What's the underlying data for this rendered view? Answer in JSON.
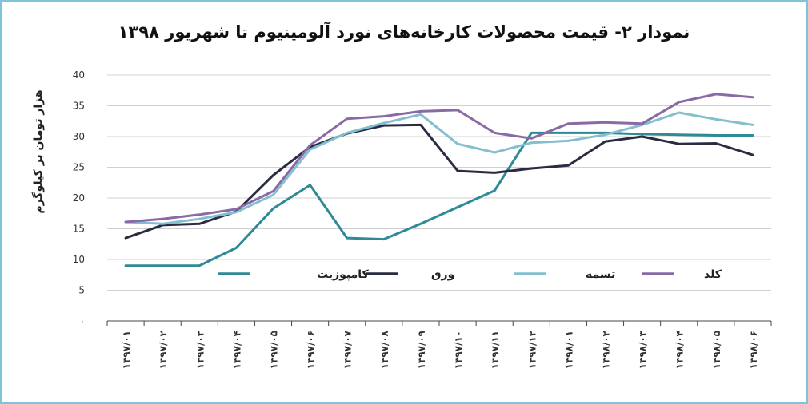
{
  "chart_data": {
    "type": "line",
    "title": "نمودار ۲- قیمت محصولات کارخانه‌های نورد آلومینیوم تا شهریور ۱۳۹۸",
    "xlabel": "",
    "ylabel": "هزار تومان بر کیلوگرم",
    "ylim": [
      0,
      40
    ],
    "yticks": [
      0,
      5,
      10,
      15,
      20,
      25,
      30,
      35,
      40
    ],
    "ytick_labels": [
      "۰",
      "5",
      "10",
      "15",
      "20",
      "25",
      "30",
      "35",
      "40"
    ],
    "grid": true,
    "legend_position": "inside-lower",
    "categories": [
      "۱۳۹۷/۰۱",
      "۱۳۹۷/۰۲",
      "۱۳۹۷/۰۳",
      "۱۳۹۷/۰۴",
      "۱۳۹۷/۰۵",
      "۱۳۹۷/۰۶",
      "۱۳۹۷/۰۷",
      "۱۳۹۷/۰۸",
      "۱۳۹۷/۰۹",
      "۱۳۹۷/۱۰",
      "۱۳۹۷/۱۱",
      "۱۳۹۷/۱۲",
      "۱۳۹۸/۰۱",
      "۱۳۹۸/۰۲",
      "۱۳۹۸/۰۳",
      "۱۳۹۸/۰۴",
      "۱۳۹۸/۰۵",
      "۱۳۹۸/۰۶"
    ],
    "series": [
      {
        "name": "کامپوزیت",
        "color": "#2e8a95",
        "values": [
          9,
          9,
          9,
          11.9,
          18.3,
          22.1,
          13.5,
          13.3,
          15.8,
          18.5,
          21.2,
          30.6,
          30.6,
          30.6,
          30.4,
          30.3,
          30.2,
          30.2
        ]
      },
      {
        "name": "ورق",
        "color": "#2a2c42",
        "values": [
          13.5,
          15.6,
          15.8,
          17.8,
          23.7,
          28.3,
          30.5,
          31.8,
          31.9,
          24.4,
          24.1,
          24.8,
          25.3,
          29.2,
          30.0,
          28.8,
          28.9,
          27.0
        ]
      },
      {
        "name": "تسمه",
        "color": "#84bfd0",
        "values": [
          16.1,
          15.8,
          16.6,
          17.7,
          20.5,
          27.9,
          30.6,
          32.2,
          33.6,
          28.8,
          27.4,
          29.0,
          29.3,
          30.3,
          31.9,
          33.9,
          32.8,
          31.9
        ]
      },
      {
        "name": "کلد",
        "color": "#8a6aa6",
        "values": [
          16.1,
          16.6,
          17.3,
          18.2,
          21.1,
          28.6,
          32.9,
          33.3,
          34.1,
          34.3,
          30.6,
          29.7,
          32.1,
          32.3,
          32.1,
          35.6,
          36.9,
          36.4
        ]
      }
    ]
  }
}
